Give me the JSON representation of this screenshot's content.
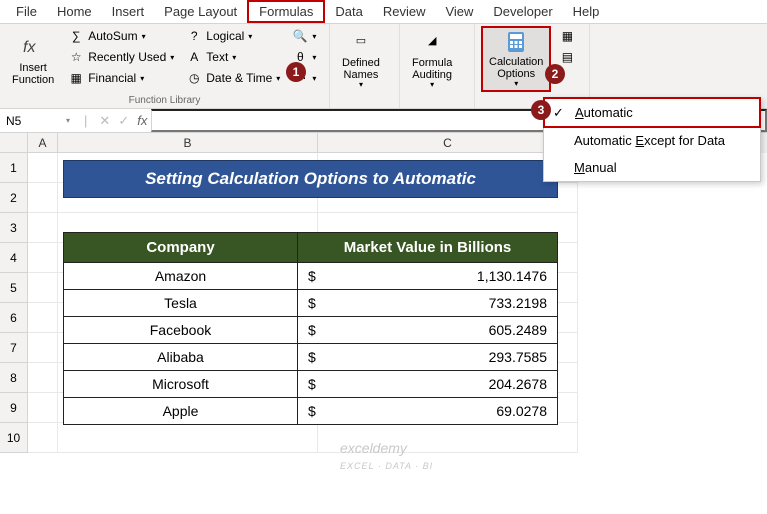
{
  "tabs": {
    "file": "File",
    "home": "Home",
    "insert": "Insert",
    "page_layout": "Page Layout",
    "formulas": "Formulas",
    "data": "Data",
    "review": "Review",
    "view": "View",
    "developer": "Developer",
    "help": "Help"
  },
  "ribbon": {
    "insert_function": "Insert\nFunction",
    "autosum": "AutoSum",
    "recently_used": "Recently Used",
    "financial": "Financial",
    "logical": "Logical",
    "text": "Text",
    "date_time": "Date & Time",
    "function_library": "Function Library",
    "defined_names": "Defined\nNames",
    "formula_auditing": "Formula\nAuditing",
    "calculation_options": "Calculation\nOptions"
  },
  "steps": {
    "s1": "1",
    "s2": "2",
    "s3": "3"
  },
  "dropdown": {
    "automatic": "utomatic",
    "automatic_prefix": "A",
    "except": "Automatic ",
    "except_mnemonic": "E",
    "except_suffix": "xcept for Data",
    "manual_mnemonic": "M",
    "manual": "anual"
  },
  "namebox": "N5",
  "fx": "fx",
  "columns": {
    "A": "A",
    "B": "B",
    "C": "C"
  },
  "rows": [
    "1",
    "2",
    "3",
    "4",
    "5",
    "6",
    "7",
    "8",
    "9",
    "10"
  ],
  "title_banner": "Setting Calculation Options to Automatic",
  "table": {
    "headers": {
      "company": "Company",
      "market_value": "Market Value in Billions"
    },
    "currency": "$",
    "data": [
      {
        "company": "Amazon",
        "value": "1,130.1476"
      },
      {
        "company": "Tesla",
        "value": "733.2198"
      },
      {
        "company": "Facebook",
        "value": "605.2489"
      },
      {
        "company": "Alibaba",
        "value": "293.7585"
      },
      {
        "company": "Microsoft",
        "value": "204.2678"
      },
      {
        "company": "Apple",
        "value": "69.0278"
      }
    ]
  },
  "watermark": {
    "main": "exceldemy",
    "sub": "EXCEL · DATA · BI"
  },
  "colors": {
    "highlight_border": "#c00000",
    "step_badge_bg": "#8b1a1a",
    "banner_bg": "#2f5597",
    "table_header_bg": "#375623"
  }
}
